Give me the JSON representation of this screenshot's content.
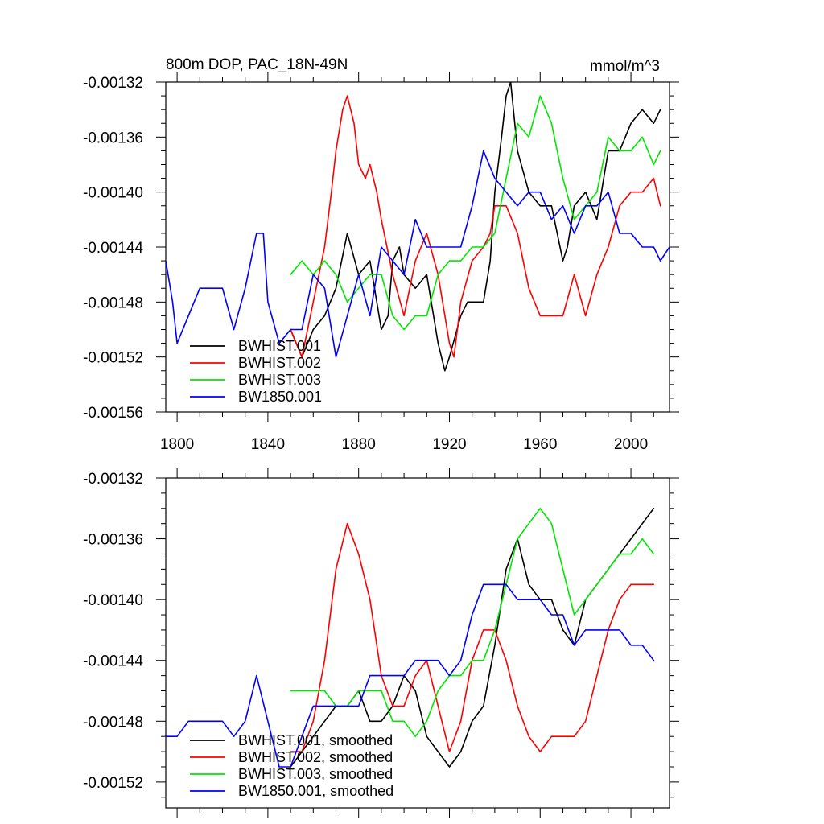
{
  "chart_data": [
    {
      "type": "line",
      "title": "800m DOP, PAC_18N-49N",
      "units": "mmol/m^3",
      "xlabel": "",
      "ylabel": "",
      "xlim": [
        1795,
        2017
      ],
      "ylim": [
        -0.00156,
        -0.00132
      ],
      "xticks": [
        1800,
        1840,
        1880,
        1920,
        1960,
        2000
      ],
      "yticks": [
        -0.00132,
        -0.00136,
        -0.0014,
        -0.00144,
        -0.00148,
        -0.00152,
        -0.00156
      ],
      "ytick_labels": [
        "-0.00132",
        "-0.00136",
        "-0.00140",
        "-0.00144",
        "-0.00148",
        "-0.00152",
        "-0.00156"
      ],
      "show_xtick_labels": true,
      "legend_position": "bottom-left",
      "series": [
        {
          "name": "BWHIST.001",
          "color": "#000000",
          "x": [
            1850,
            1855,
            1860,
            1865,
            1870,
            1875,
            1880,
            1885,
            1890,
            1893,
            1895,
            1898,
            1900,
            1905,
            1910,
            1915,
            1918,
            1920,
            1925,
            1928,
            1930,
            1935,
            1938,
            1940,
            1943,
            1945,
            1947,
            1950,
            1955,
            1960,
            1965,
            1970,
            1972,
            1975,
            1980,
            1985,
            1990,
            1995,
            2000,
            2005,
            2010,
            2013
          ],
          "y": [
            -0.0015,
            -0.00152,
            -0.0015,
            -0.00149,
            -0.00147,
            -0.00143,
            -0.00146,
            -0.00145,
            -0.0015,
            -0.00149,
            -0.00145,
            -0.00144,
            -0.00146,
            -0.00147,
            -0.00146,
            -0.00151,
            -0.00153,
            -0.00152,
            -0.00149,
            -0.00148,
            -0.00148,
            -0.00148,
            -0.00145,
            -0.0014,
            -0.00136,
            -0.00133,
            -0.00132,
            -0.00137,
            -0.0014,
            -0.00141,
            -0.00141,
            -0.00145,
            -0.00144,
            -0.00141,
            -0.0014,
            -0.00142,
            -0.00137,
            -0.00137,
            -0.00135,
            -0.00134,
            -0.00135,
            -0.00134
          ]
        },
        {
          "name": "BWHIST.002",
          "color": "#ff0000",
          "x": [
            1850,
            1855,
            1860,
            1865,
            1868,
            1870,
            1873,
            1875,
            1878,
            1880,
            1883,
            1885,
            1888,
            1890,
            1895,
            1900,
            1905,
            1910,
            1915,
            1920,
            1922,
            1925,
            1930,
            1935,
            1938,
            1940,
            1945,
            1950,
            1955,
            1960,
            1965,
            1970,
            1975,
            1980,
            1985,
            1990,
            1995,
            2000,
            2005,
            2010,
            2013
          ],
          "y": [
            -0.0015,
            -0.00152,
            -0.00148,
            -0.00144,
            -0.0014,
            -0.00137,
            -0.00134,
            -0.00133,
            -0.00135,
            -0.00138,
            -0.00139,
            -0.00138,
            -0.0014,
            -0.00142,
            -0.00146,
            -0.00149,
            -0.00145,
            -0.00143,
            -0.00146,
            -0.00151,
            -0.00152,
            -0.00148,
            -0.00145,
            -0.00144,
            -0.00143,
            -0.00141,
            -0.00141,
            -0.00143,
            -0.00147,
            -0.00149,
            -0.00149,
            -0.00149,
            -0.00146,
            -0.00149,
            -0.00146,
            -0.00144,
            -0.00141,
            -0.0014,
            -0.0014,
            -0.00139,
            -0.00141
          ]
        },
        {
          "name": "BWHIST.003",
          "color": "#00e600",
          "x": [
            1850,
            1855,
            1860,
            1865,
            1870,
            1875,
            1880,
            1885,
            1890,
            1895,
            1900,
            1905,
            1910,
            1915,
            1920,
            1925,
            1930,
            1935,
            1940,
            1945,
            1950,
            1955,
            1960,
            1965,
            1970,
            1975,
            1980,
            1985,
            1990,
            1995,
            2000,
            2005,
            2010,
            2013
          ],
          "y": [
            -0.00146,
            -0.00145,
            -0.00146,
            -0.00145,
            -0.00146,
            -0.00148,
            -0.00147,
            -0.00146,
            -0.00146,
            -0.00149,
            -0.0015,
            -0.00149,
            -0.00149,
            -0.00146,
            -0.00145,
            -0.00145,
            -0.00144,
            -0.00144,
            -0.00143,
            -0.00139,
            -0.00135,
            -0.00136,
            -0.00133,
            -0.00135,
            -0.00139,
            -0.00142,
            -0.00141,
            -0.0014,
            -0.00136,
            -0.00137,
            -0.00137,
            -0.00136,
            -0.00138,
            -0.00137
          ]
        },
        {
          "name": "BW1850.001",
          "color": "#0000ff",
          "x": [
            1795,
            1798,
            1800,
            1805,
            1810,
            1815,
            1820,
            1825,
            1830,
            1835,
            1838,
            1840,
            1845,
            1850,
            1855,
            1860,
            1865,
            1870,
            1875,
            1880,
            1885,
            1890,
            1895,
            1900,
            1905,
            1910,
            1915,
            1920,
            1925,
            1930,
            1935,
            1940,
            1945,
            1950,
            1955,
            1960,
            1965,
            1970,
            1975,
            1980,
            1985,
            1990,
            1995,
            2000,
            2005,
            2010,
            2013,
            2017
          ],
          "y": [
            -0.00145,
            -0.00148,
            -0.00151,
            -0.00149,
            -0.00147,
            -0.00147,
            -0.00147,
            -0.0015,
            -0.00147,
            -0.00143,
            -0.00143,
            -0.00148,
            -0.00151,
            -0.0015,
            -0.0015,
            -0.00146,
            -0.00147,
            -0.00152,
            -0.00149,
            -0.00146,
            -0.00149,
            -0.00144,
            -0.00145,
            -0.00146,
            -0.00142,
            -0.00144,
            -0.00144,
            -0.00144,
            -0.00144,
            -0.00141,
            -0.00137,
            -0.00139,
            -0.0014,
            -0.00141,
            -0.0014,
            -0.0014,
            -0.00142,
            -0.00141,
            -0.00143,
            -0.00141,
            -0.00141,
            -0.0014,
            -0.00143,
            -0.00143,
            -0.00144,
            -0.00144,
            -0.00145,
            -0.00144
          ]
        }
      ]
    },
    {
      "type": "line",
      "title": "",
      "units": "",
      "xlabel": "",
      "ylabel": "",
      "xlim": [
        1795,
        2017
      ],
      "ylim": [
        -0.001537,
        -0.00132
      ],
      "xticks": [
        1800,
        1840,
        1880,
        1920,
        1960,
        2000
      ],
      "yticks": [
        -0.00132,
        -0.00136,
        -0.0014,
        -0.00144,
        -0.00148,
        -0.00152
      ],
      "ytick_labels": [
        "-0.00132",
        "-0.00136",
        "-0.00140",
        "-0.00144",
        "-0.00148",
        "-0.00152"
      ],
      "show_xtick_labels": false,
      "legend_position": "bottom-left",
      "series": [
        {
          "name": "BWHIST.001, smoothed",
          "color": "#000000",
          "x": [
            1850,
            1855,
            1860,
            1865,
            1870,
            1875,
            1880,
            1885,
            1890,
            1895,
            1900,
            1905,
            1910,
            1915,
            1920,
            1925,
            1930,
            1935,
            1940,
            1945,
            1950,
            1955,
            1960,
            1965,
            1970,
            1975,
            1980,
            1985,
            1990,
            1995,
            2000,
            2005,
            2010
          ],
          "y": [
            -0.00151,
            -0.0015,
            -0.00149,
            -0.00148,
            -0.00147,
            -0.00147,
            -0.00146,
            -0.00148,
            -0.00148,
            -0.00147,
            -0.00145,
            -0.00146,
            -0.00149,
            -0.0015,
            -0.00151,
            -0.0015,
            -0.00148,
            -0.00147,
            -0.00143,
            -0.00138,
            -0.00136,
            -0.00139,
            -0.0014,
            -0.0014,
            -0.00142,
            -0.00143,
            -0.0014,
            -0.00139,
            -0.00138,
            -0.00137,
            -0.00136,
            -0.00135,
            -0.00134
          ]
        },
        {
          "name": "BWHIST.002, smoothed",
          "color": "#ff0000",
          "x": [
            1850,
            1855,
            1860,
            1865,
            1870,
            1875,
            1880,
            1885,
            1890,
            1895,
            1900,
            1905,
            1910,
            1915,
            1920,
            1925,
            1930,
            1935,
            1940,
            1945,
            1950,
            1955,
            1960,
            1965,
            1970,
            1975,
            1980,
            1985,
            1990,
            1995,
            2000,
            2005,
            2010
          ],
          "y": [
            -0.0015,
            -0.0015,
            -0.00148,
            -0.00144,
            -0.00138,
            -0.00135,
            -0.00137,
            -0.0014,
            -0.00145,
            -0.00147,
            -0.00147,
            -0.00145,
            -0.00144,
            -0.00147,
            -0.0015,
            -0.00148,
            -0.00144,
            -0.00142,
            -0.00142,
            -0.00144,
            -0.00147,
            -0.00149,
            -0.0015,
            -0.00149,
            -0.00149,
            -0.00149,
            -0.00148,
            -0.00145,
            -0.00142,
            -0.0014,
            -0.00139,
            -0.00139,
            -0.00139
          ]
        },
        {
          "name": "BWHIST.003, smoothed",
          "color": "#00e600",
          "x": [
            1850,
            1855,
            1860,
            1865,
            1870,
            1875,
            1880,
            1885,
            1890,
            1895,
            1900,
            1905,
            1910,
            1915,
            1920,
            1925,
            1930,
            1935,
            1940,
            1945,
            1950,
            1955,
            1960,
            1965,
            1970,
            1975,
            1980,
            1985,
            1990,
            1995,
            2000,
            2005,
            2010
          ],
          "y": [
            -0.00146,
            -0.00146,
            -0.00146,
            -0.00146,
            -0.00147,
            -0.00147,
            -0.00146,
            -0.00146,
            -0.00146,
            -0.00148,
            -0.00148,
            -0.00149,
            -0.00148,
            -0.00146,
            -0.00145,
            -0.00145,
            -0.00144,
            -0.00144,
            -0.00142,
            -0.00139,
            -0.00136,
            -0.00135,
            -0.00134,
            -0.00135,
            -0.00138,
            -0.00141,
            -0.0014,
            -0.00139,
            -0.00138,
            -0.00137,
            -0.00137,
            -0.00136,
            -0.00137
          ]
        },
        {
          "name": "BW1850.001, smoothed",
          "color": "#0000ff",
          "x": [
            1795,
            1800,
            1805,
            1810,
            1815,
            1820,
            1825,
            1830,
            1835,
            1840,
            1845,
            1850,
            1855,
            1860,
            1865,
            1870,
            1875,
            1880,
            1885,
            1890,
            1895,
            1900,
            1905,
            1910,
            1915,
            1920,
            1925,
            1930,
            1935,
            1940,
            1945,
            1950,
            1955,
            1960,
            1965,
            1970,
            1975,
            1980,
            1985,
            1990,
            1995,
            2000,
            2005,
            2010
          ],
          "y": [
            -0.00149,
            -0.00149,
            -0.00148,
            -0.00148,
            -0.00148,
            -0.00148,
            -0.00149,
            -0.00148,
            -0.00145,
            -0.00148,
            -0.00151,
            -0.00151,
            -0.00149,
            -0.00147,
            -0.00147,
            -0.00147,
            -0.00147,
            -0.00147,
            -0.00145,
            -0.00145,
            -0.00145,
            -0.00145,
            -0.00144,
            -0.00144,
            -0.00144,
            -0.00145,
            -0.00144,
            -0.00141,
            -0.00139,
            -0.00139,
            -0.00139,
            -0.0014,
            -0.0014,
            -0.0014,
            -0.00141,
            -0.00141,
            -0.00143,
            -0.00142,
            -0.00142,
            -0.00142,
            -0.00142,
            -0.00143,
            -0.00143,
            -0.00144
          ]
        }
      ]
    }
  ]
}
